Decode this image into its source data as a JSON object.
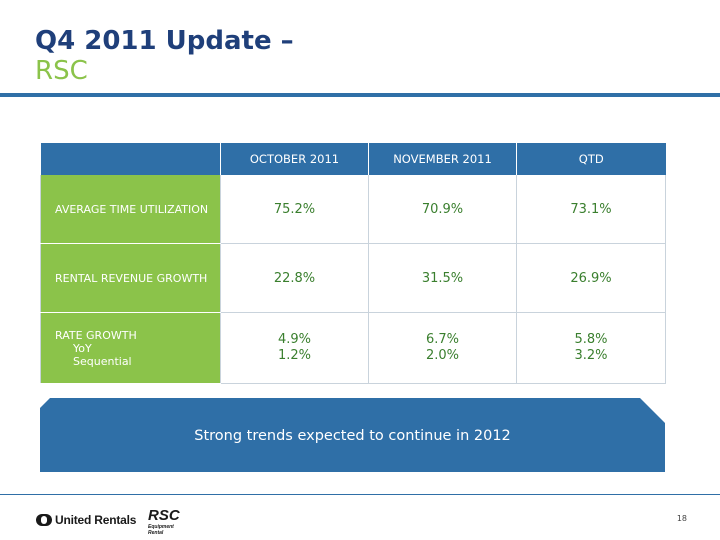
{
  "slide": {
    "title": "Q4 2011 Update –",
    "subtitle": "RSC",
    "page_number": "18"
  },
  "table": {
    "columns": [
      "OCTOBER 2011",
      "NOVEMBER 2011",
      "QTD"
    ],
    "rows": [
      {
        "label": "AVERAGE TIME UTILIZATION",
        "values": [
          "75.2%",
          "70.9%",
          "73.1%"
        ]
      },
      {
        "label": "RENTAL REVENUE GROWTH",
        "values": [
          "22.8%",
          "31.5%",
          "26.9%"
        ]
      },
      {
        "label": "RATE GROWTH",
        "sublabels": [
          "YoY",
          "Sequential"
        ],
        "values": [
          [
            "4.9%",
            "1.2%"
          ],
          [
            "6.7%",
            "2.0%"
          ],
          [
            "5.8%",
            "3.2%"
          ]
        ]
      }
    ]
  },
  "banner": {
    "text": "Strong trends expected to continue in 2012"
  },
  "footer": {
    "logo_united_rentals": "United Rentals",
    "logo_rsc": "RSC",
    "logo_rsc_sub": "Equipment Rental"
  },
  "colors": {
    "title_blue": "#1f3f7a",
    "accent_green": "#8bc34a",
    "header_blue": "#2f6fa7",
    "value_green": "#3a7f2e"
  }
}
